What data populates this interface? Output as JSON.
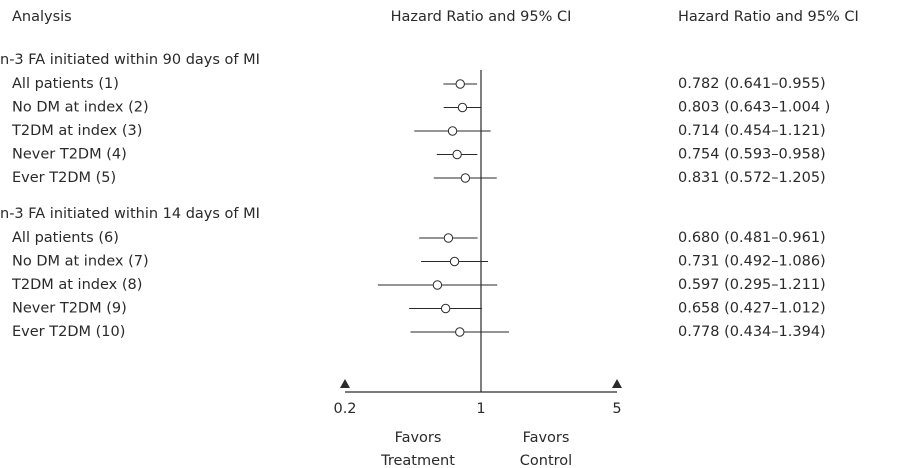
{
  "chart_data": {
    "type": "forest",
    "column_headers": [
      "Analysis",
      "Hazard Ratio and 95% CI",
      "Hazard Ratio and 95% CI"
    ],
    "log_scale": true,
    "xlim": [
      0.2,
      5
    ],
    "xticks": [
      0.2,
      1,
      5
    ],
    "color": "#2a2a2a",
    "left_note": [
      "Favors",
      "Treatment"
    ],
    "right_note": [
      "Favors",
      "Control"
    ],
    "groups": [
      {
        "title": "n-3 FA initiated within 90 days of MI",
        "categories": [
          "All patients (1)",
          "No DM at index (2)",
          "T2DM at index (3)",
          "Never T2DM (4)",
          "Ever T2DM (5)"
        ],
        "values": [
          0.782,
          0.803,
          0.714,
          0.754,
          0.831
        ],
        "lower": [
          0.641,
          0.643,
          0.454,
          0.593,
          0.572
        ],
        "upper": [
          0.955,
          1.004,
          1.121,
          0.958,
          1.205
        ],
        "value_labels": [
          "0.782 (0.641–0.955)",
          "0.803 (0.643–1.004 )",
          "0.714 (0.454–1.121)",
          "0.754 (0.593–0.958)",
          "0.831 (0.572–1.205)"
        ]
      },
      {
        "title": "n-3 FA initiated within 14 days of MI",
        "categories": [
          "All patients (6)",
          "No DM at index (7)",
          "T2DM at index (8)",
          "Never T2DM (9)",
          "Ever T2DM (10)"
        ],
        "values": [
          0.68,
          0.731,
          0.597,
          0.658,
          0.778
        ],
        "lower": [
          0.481,
          0.492,
          0.295,
          0.427,
          0.434
        ],
        "upper": [
          0.961,
          1.086,
          1.211,
          1.012,
          1.394
        ],
        "value_labels": [
          "0.680 (0.481–0.961)",
          "0.731 (0.492–1.086)",
          "0.597 (0.295–1.211)",
          "0.658 (0.427–1.012)",
          "0.778 (0.434–1.394)"
        ]
      }
    ]
  }
}
